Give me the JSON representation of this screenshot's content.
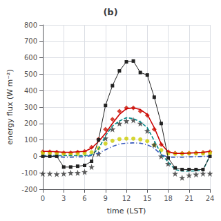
{
  "chart_data": {
    "type": "line",
    "title": "(b)",
    "xlabel": "time (LST)",
    "ylabel": "energy flux (W m⁻²)",
    "x": [
      0,
      1,
      2,
      3,
      4,
      5,
      6,
      7,
      8,
      9,
      10,
      11,
      12,
      13,
      14,
      15,
      16,
      17,
      18,
      19,
      20,
      21,
      22,
      23,
      24
    ],
    "xlim": [
      0,
      24
    ],
    "ylim": [
      -200,
      800
    ],
    "xticks": [
      0,
      3,
      6,
      9,
      12,
      15,
      18,
      21,
      24
    ],
    "yticks": [
      -200,
      -100,
      0,
      100,
      200,
      300,
      400,
      500,
      600,
      700,
      800
    ],
    "grid": true,
    "series": [
      {
        "type": "line",
        "color": "#008888",
        "line_style": "dashed",
        "values": [
          5,
          5,
          5,
          5,
          5,
          5,
          5,
          10,
          45,
          125,
          185,
          215,
          235,
          230,
          210,
          175,
          95,
          15,
          -35,
          -80,
          -90,
          -90,
          -88,
          -85,
          5
        ]
      },
      {
        "type": "line",
        "color": "#3355bb",
        "line_style": "dashdot",
        "values": [
          0,
          0,
          0,
          -5,
          -5,
          -3,
          -2,
          5,
          20,
          40,
          60,
          75,
          80,
          82,
          80,
          70,
          50,
          10,
          -5,
          -5,
          -5,
          -3,
          -2,
          0,
          0
        ]
      },
      {
        "type": "line",
        "color": "#cc0000",
        "line_style": "solid",
        "values": [
          30,
          30,
          28,
          25,
          25,
          28,
          30,
          50,
          90,
          140,
          200,
          255,
          290,
          295,
          285,
          255,
          175,
          75,
          28,
          18,
          18,
          20,
          22,
          25,
          30
        ]
      },
      {
        "type": "line",
        "color": "#222222",
        "line_style": "solid",
        "marker": "square",
        "values": [
          0,
          0,
          0,
          -65,
          -65,
          -60,
          -55,
          -30,
          100,
          310,
          430,
          520,
          575,
          580,
          510,
          495,
          360,
          200,
          -10,
          -70,
          -80,
          -80,
          -80,
          -80,
          0
        ]
      },
      {
        "type": "scatter",
        "color": "#cc1100",
        "marker": "diamond",
        "values": [
          28,
          28,
          26,
          22,
          22,
          26,
          30,
          55,
          105,
          165,
          225,
          275,
          295,
          295,
          275,
          250,
          165,
          72,
          28,
          20,
          18,
          20,
          22,
          24,
          28
        ]
      },
      {
        "type": "scatter",
        "color": "#cccc00",
        "marker": "circle",
        "values": [
          20,
          20,
          18,
          15,
          12,
          15,
          18,
          25,
          50,
          78,
          95,
          105,
          108,
          108,
          103,
          93,
          68,
          38,
          18,
          16,
          16,
          18,
          18,
          18,
          20
        ]
      },
      {
        "type": "scatter",
        "color": "#333333",
        "marker": "star",
        "values": [
          -105,
          -105,
          -108,
          -105,
          -100,
          -100,
          -95,
          -65,
          15,
          110,
          165,
          200,
          215,
          220,
          200,
          155,
          70,
          0,
          -45,
          -105,
          -130,
          -115,
          -110,
          -105,
          -105
        ]
      }
    ]
  }
}
